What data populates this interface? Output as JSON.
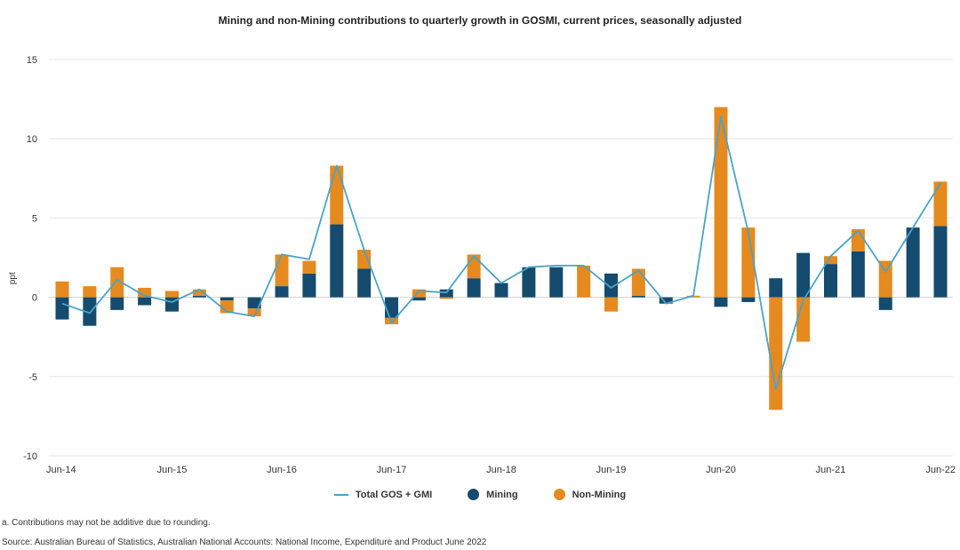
{
  "chart_data": {
    "type": "bar",
    "title": "Mining and non-Mining contributions to quarterly growth in GOSMI, current prices, seasonally adjusted",
    "xlabel": "",
    "ylabel": "ppt",
    "ylim": [
      -10,
      15
    ],
    "yticks": [
      -10,
      -5,
      0,
      5,
      10,
      15
    ],
    "x_tick_labels": [
      "Jun-14",
      "Jun-15",
      "Jun-16",
      "Jun-17",
      "Jun-18",
      "Jun-19",
      "Jun-20",
      "Jun-21",
      "Jun-22"
    ],
    "categories": [
      "Jun-14",
      "Sep-14",
      "Dec-14",
      "Mar-15",
      "Jun-15",
      "Sep-15",
      "Dec-15",
      "Mar-16",
      "Jun-16",
      "Sep-16",
      "Dec-16",
      "Mar-17",
      "Jun-17",
      "Sep-17",
      "Dec-17",
      "Mar-18",
      "Jun-18",
      "Sep-18",
      "Dec-18",
      "Mar-19",
      "Jun-19",
      "Sep-19",
      "Dec-19",
      "Mar-20",
      "Jun-20",
      "Sep-20",
      "Dec-20",
      "Mar-21",
      "Jun-21",
      "Sep-21",
      "Dec-21",
      "Mar-22",
      "Jun-22"
    ],
    "series": [
      {
        "name": "Mining",
        "kind": "bar",
        "color": "#154b6e",
        "values": [
          -1.4,
          -1.8,
          -0.8,
          -0.5,
          -0.9,
          0.1,
          -0.2,
          -0.7,
          0.7,
          1.5,
          4.6,
          1.8,
          -1.3,
          -0.2,
          0.5,
          1.2,
          0.9,
          1.9,
          1.9,
          0.0,
          1.5,
          0.1,
          -0.4,
          0.0,
          -0.6,
          -0.3,
          1.2,
          2.8,
          2.1,
          2.9,
          -0.8,
          4.4,
          4.5
        ]
      },
      {
        "name": "Non-Mining",
        "kind": "bar",
        "color": "#e58a1f",
        "values": [
          1.0,
          0.7,
          1.9,
          0.6,
          0.4,
          0.4,
          -0.8,
          -0.5,
          2.0,
          0.8,
          3.7,
          1.2,
          -0.4,
          0.5,
          -0.1,
          1.5,
          0.0,
          0.0,
          0.0,
          2.0,
          -0.9,
          1.7,
          0.0,
          0.1,
          12.0,
          4.4,
          -7.1,
          -2.8,
          0.5,
          1.4,
          2.3,
          0.0,
          2.8
        ]
      },
      {
        "name": "Total GOS + GMI",
        "kind": "line",
        "color": "#4aa3c7",
        "values": [
          -0.4,
          -1.0,
          1.1,
          0.1,
          -0.3,
          0.5,
          -0.9,
          -1.2,
          2.7,
          2.4,
          8.3,
          3.0,
          -1.6,
          0.4,
          0.3,
          2.6,
          0.9,
          1.9,
          2.0,
          2.0,
          0.6,
          1.7,
          -0.4,
          0.1,
          11.4,
          4.1,
          -5.8,
          -0.2,
          2.6,
          4.2,
          1.6,
          4.4,
          7.2
        ]
      }
    ]
  },
  "legend": {
    "total_label": "Total GOS + GMI",
    "mining_label": "Mining",
    "nonmining_label": "Non-Mining",
    "total_color": "#4aa3c7",
    "mining_color": "#154b6e",
    "nonmining_color": "#e58a1f"
  },
  "footnote": "a. Contributions may not be additive due to rounding.",
  "source": "Source: Australian Bureau of Statistics, Australian National Accounts: National Income, Expenditure and Product June 2022"
}
